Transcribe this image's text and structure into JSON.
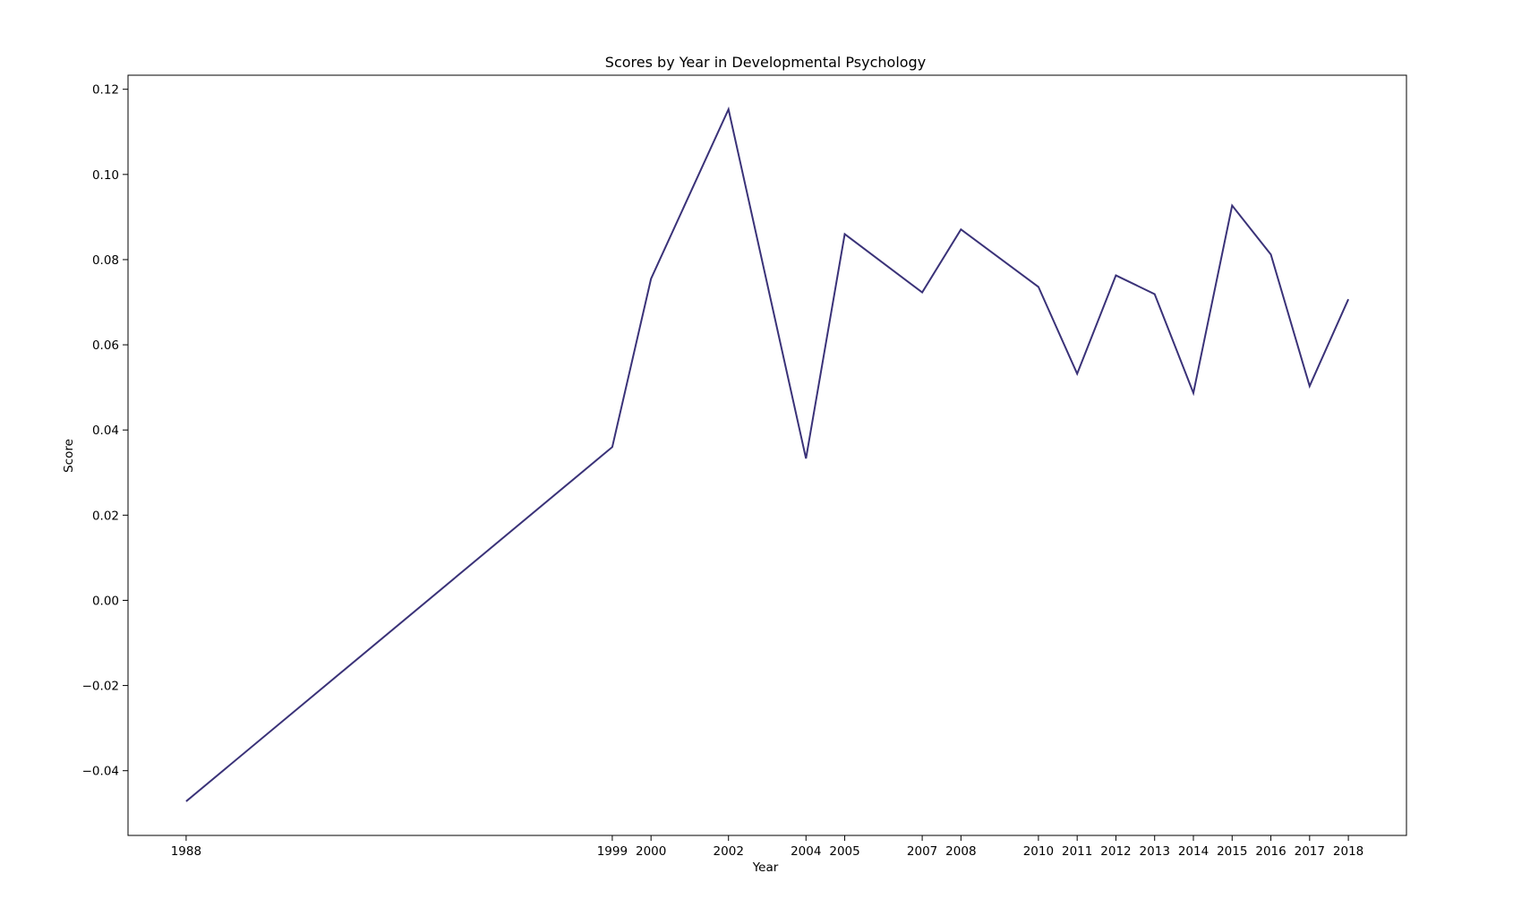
{
  "chart_data": {
    "type": "line",
    "title": "Scores by Year in Developmental Psychology",
    "xlabel": "Year",
    "ylabel": "Score",
    "x": [
      1988,
      1999,
      2000,
      2002,
      2004,
      2005,
      2007,
      2008,
      2010,
      2011,
      2012,
      2013,
      2014,
      2015,
      2016,
      2017,
      2018
    ],
    "x_tick_labels": [
      "1988",
      "1999",
      "2000",
      "2002",
      "2004",
      "2005",
      "2007",
      "2008",
      "2010",
      "2011",
      "2012",
      "2013",
      "2014",
      "2015",
      "2016",
      "2017",
      "2018"
    ],
    "series": [
      {
        "values": [
          -0.0472,
          0.036,
          0.0755,
          0.1153,
          0.0333,
          0.086,
          0.0723,
          0.0871,
          0.0736,
          0.0532,
          0.0763,
          0.0719,
          0.0487,
          0.0927,
          0.0812,
          0.0503,
          0.0707
        ],
        "color": "#3a3278"
      }
    ],
    "y_ticks": [
      -0.04,
      -0.02,
      0.0,
      0.02,
      0.04,
      0.06,
      0.08,
      0.1,
      0.12
    ],
    "y_tick_labels": [
      "−0.04",
      "−0.02",
      "0.00",
      "0.02",
      "0.04",
      "0.06",
      "0.08",
      "0.10",
      "0.12"
    ],
    "xlim": [
      1986.5,
      2019.5
    ],
    "ylim": [
      -0.0552,
      0.1233
    ],
    "grid": false,
    "legend": "none"
  }
}
